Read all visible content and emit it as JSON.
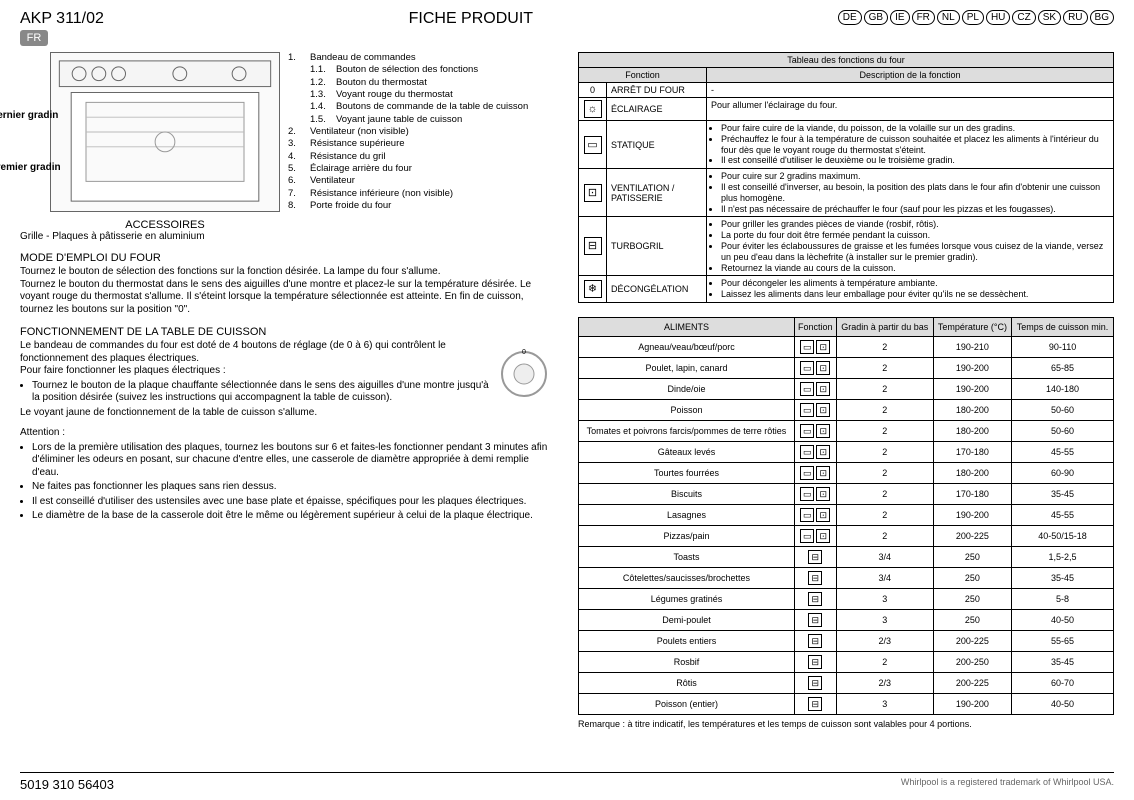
{
  "header": {
    "model": "AKP 311/02",
    "lang_badge": "FR",
    "title": "FICHE PRODUIT",
    "langs": [
      "DE",
      "GB",
      "IE",
      "FR",
      "NL",
      "PL",
      "HU",
      "CZ",
      "SK",
      "RU",
      "BG"
    ]
  },
  "diagram": {
    "dernier": "Dernier gradin",
    "premier": "Premier gradin",
    "accessories_title": "ACCESSOIRES",
    "accessories_text": "Grille - Plaques à pâtisserie en aluminium"
  },
  "legend": {
    "items": [
      {
        "n": "1.",
        "t": "Bandeau de commandes",
        "subs": [
          {
            "n": "1.1.",
            "t": "Bouton de sélection des fonctions"
          },
          {
            "n": "1.2.",
            "t": "Bouton du thermostat"
          },
          {
            "n": "1.3.",
            "t": "Voyant rouge du thermostat"
          },
          {
            "n": "1.4.",
            "t": "Boutons de commande de la table de cuisson"
          },
          {
            "n": "1.5.",
            "t": "Voyant jaune table de cuisson"
          }
        ]
      },
      {
        "n": "2.",
        "t": "Ventilateur (non visible)"
      },
      {
        "n": "3.",
        "t": "Résistance supérieure"
      },
      {
        "n": "4.",
        "t": "Résistance du gril"
      },
      {
        "n": "5.",
        "t": "Éclairage arrière du four"
      },
      {
        "n": "6.",
        "t": "Ventilateur"
      },
      {
        "n": "7.",
        "t": "Résistance inférieure (non visible)"
      },
      {
        "n": "8.",
        "t": "Porte froide du four"
      }
    ]
  },
  "mode": {
    "title": "MODE D'EMPLOI DU FOUR",
    "p1": "Tournez le bouton de sélection des fonctions sur la fonction désirée. La lampe du four s'allume.",
    "p2": "Tournez le bouton du thermostat dans le sens des aiguilles d'une montre et placez-le sur la température désirée. Le voyant rouge du thermostat s'allume. Il s'éteint lorsque la température sélectionnée est atteinte. En fin de cuisson, tournez les boutons sur la position \"0\"."
  },
  "hob": {
    "title": "FONCTIONNEMENT DE LA TABLE DE CUISSON",
    "p1": "Le bandeau de commandes du four est doté de 4 boutons de réglage (de 0 à 6) qui contrôlent le fonctionnement des plaques électriques.",
    "p2": "Pour faire fonctionner les plaques électriques :",
    "b1": "Tournez le bouton de la plaque chauffante sélectionnée dans le sens des aiguilles d'une montre jusqu'à la position désirée (suivez les instructions qui accompagnent la table de cuisson).",
    "p3": "Le voyant jaune de fonctionnement de la table de cuisson s'allume."
  },
  "attn": {
    "title": "Attention :",
    "b1": "Lors de la première utilisation des plaques, tournez les boutons sur 6 et faites-les fonctionner pendant 3 minutes afin d'éliminer les odeurs en posant, sur chacune d'entre elles, une casserole de diamètre appropriée à demi remplie d'eau.",
    "b2": "Ne faites pas fonctionner les plaques sans rien dessus.",
    "b3": "Il est conseillé d'utiliser des ustensiles avec une base plate et épaisse, spécifiques pour les plaques électriques.",
    "b4": "Le diamètre de la base de la casserole doit être le même ou légèrement supérieur à celui de la plaque électrique."
  },
  "func_table": {
    "caption": "Tableau des fonctions du four",
    "col1": "Fonction",
    "col2": "Description de la fonction",
    "rows": [
      {
        "icon": "0",
        "name": "ARRÊT DU FOUR",
        "desc": [
          "-"
        ],
        "plain": true
      },
      {
        "icon": "☼",
        "name": "ÉCLAIRAGE",
        "desc": [
          "Pour allumer l'éclairage du four."
        ],
        "plain": true
      },
      {
        "icon": "▭",
        "name": "STATIQUE",
        "desc": [
          "Pour faire cuire de la viande, du poisson, de la volaille sur un des gradins.",
          "Préchauffez le four à la température de cuisson souhaitée et placez les aliments à l'intérieur du four dès que le voyant rouge du thermostat s'éteint.",
          "Il est conseillé d'utiliser le deuxième ou le troisième gradin."
        ]
      },
      {
        "icon": "⊡",
        "name": "VENTILATION / PATISSERIE",
        "desc": [
          "Pour cuire sur 2 gradins maximum.",
          "Il est conseillé d'inverser, au besoin, la position des plats dans le four afin d'obtenir une cuisson plus homogène.",
          "Il n'est pas nécessaire de préchauffer le four (sauf pour les pizzas et les fougasses)."
        ]
      },
      {
        "icon": "⊟",
        "name": "TURBOGRIL",
        "desc": [
          "Pour griller les grandes pièces de viande (rosbif, rôtis).",
          "La porte du four doit être fermée pendant la cuisson.",
          "Pour éviter les éclaboussures de graisse et les fumées lorsque vous cuisez de la viande, versez un peu d'eau dans la lèchefrite (à installer sur le premier gradin).",
          "Retournez la viande au cours de la cuisson."
        ]
      },
      {
        "icon": "❄",
        "name": "DÉCONGÉLATION",
        "desc": [
          "Pour décongeler les aliments à température ambiante.",
          "Laissez les aliments dans leur emballage pour éviter qu'ils ne se dessèchent."
        ]
      }
    ]
  },
  "cook_table": {
    "cols": [
      "ALIMENTS",
      "Fonction",
      "Gradin à partir du bas",
      "Température (°C)",
      "Temps de cuisson min."
    ],
    "rows": [
      {
        "a": "Agneau/veau/bœuf/porc",
        "f": 2,
        "g": "2",
        "t": "190-210",
        "m": "90-110"
      },
      {
        "a": "Poulet, lapin, canard",
        "f": 2,
        "g": "2",
        "t": "190-200",
        "m": "65-85"
      },
      {
        "a": "Dinde/oie",
        "f": 2,
        "g": "2",
        "t": "190-200",
        "m": "140-180"
      },
      {
        "a": "Poisson",
        "f": 2,
        "g": "2",
        "t": "180-200",
        "m": "50-60"
      },
      {
        "a": "Tomates et poivrons farcis/pommes de terre rôties",
        "f": 2,
        "g": "2",
        "t": "180-200",
        "m": "50-60"
      },
      {
        "a": "Gâteaux levés",
        "f": 2,
        "g": "2",
        "t": "170-180",
        "m": "45-55"
      },
      {
        "a": "Tourtes fourrées",
        "f": 2,
        "g": "2",
        "t": "180-200",
        "m": "60-90"
      },
      {
        "a": "Biscuits",
        "f": 2,
        "g": "2",
        "t": "170-180",
        "m": "35-45"
      },
      {
        "a": "Lasagnes",
        "f": 2,
        "g": "2",
        "t": "190-200",
        "m": "45-55"
      },
      {
        "a": "Pizzas/pain",
        "f": 2,
        "g": "2",
        "t": "200-225",
        "m": "40-50/15-18"
      },
      {
        "a": "Toasts",
        "f": 1,
        "g": "3/4",
        "t": "250",
        "m": "1,5-2,5"
      },
      {
        "a": "Côtelettes/saucisses/brochettes",
        "f": 1,
        "g": "3/4",
        "t": "250",
        "m": "35-45"
      },
      {
        "a": "Légumes gratinés",
        "f": 1,
        "g": "3",
        "t": "250",
        "m": "5-8"
      },
      {
        "a": "Demi-poulet",
        "f": 1,
        "g": "3",
        "t": "250",
        "m": "40-50"
      },
      {
        "a": "Poulets entiers",
        "f": 1,
        "g": "2/3",
        "t": "200-225",
        "m": "55-65"
      },
      {
        "a": "Rosbif",
        "f": 1,
        "g": "2",
        "t": "200-250",
        "m": "35-45"
      },
      {
        "a": "Rôtis",
        "f": 1,
        "g": "2/3",
        "t": "200-225",
        "m": "60-70"
      },
      {
        "a": "Poisson (entier)",
        "f": 1,
        "g": "3",
        "t": "190-200",
        "m": "40-50"
      }
    ]
  },
  "footnote": "Remarque : à titre indicatif, les températures et les temps de cuisson sont valables pour 4 portions.",
  "footer": {
    "left": "5019 310 56403",
    "right": "Whirlpool is a registered trademark of Whirlpool USA."
  }
}
